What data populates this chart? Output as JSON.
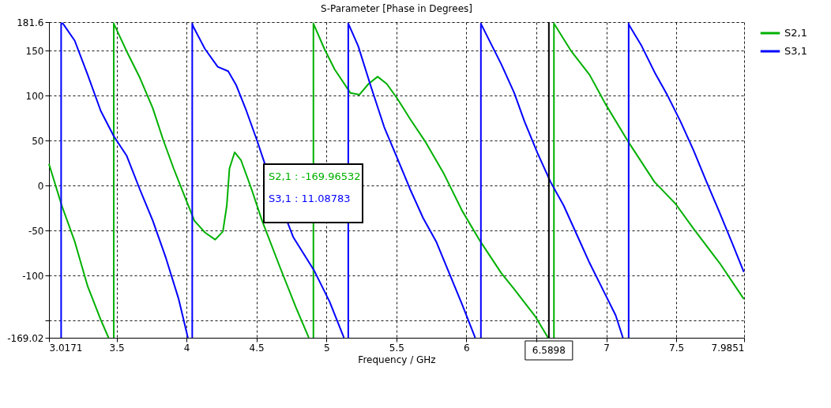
{
  "chart_data": {
    "type": "line",
    "title": "S-Parameter [Phase in Degrees]",
    "xlabel": "Frequency / GHz",
    "xlim": [
      3.0171,
      7.9851
    ],
    "xticks": [
      3.0171,
      3.5,
      4,
      4.5,
      5,
      5.5,
      6,
      {
        "value": 6.5,
        "label": null
      },
      7,
      7.5,
      7.9851
    ],
    "ylim": [
      -169.02,
      181.6
    ],
    "yticks": [
      -169.02,
      {
        "value": -150,
        "label": null
      },
      -100,
      -50,
      0,
      50,
      100,
      150,
      181.6
    ],
    "grid": true,
    "legend": "right",
    "line_style": "solid",
    "marker": "none",
    "ref_lines": [
      {
        "axis": "x",
        "value": 6.5898,
        "label": "6.5898",
        "color": "#000000"
      }
    ],
    "annotations": [
      "S2,1 : -169.96532",
      "S3,1 : 11.08783"
    ],
    "series": [
      {
        "name": "S2,1",
        "color": "#00b000",
        "x": [
          3.0171,
          3.108,
          3.201,
          3.294,
          3.387,
          3.443,
          3.46,
          3.48,
          3.48,
          3.573,
          3.666,
          3.759,
          3.833,
          3.908,
          3.982,
          4.056,
          4.131,
          4.205,
          4.26,
          4.288,
          4.307,
          4.344,
          4.39,
          4.465,
          4.54,
          4.669,
          4.781,
          4.874,
          4.89,
          4.907,
          4.907,
          4.985,
          5.059,
          5.171,
          5.236,
          5.301,
          5.366,
          5.431,
          5.505,
          5.598,
          5.71,
          5.84,
          5.97,
          6.1,
          6.249,
          6.342,
          6.491,
          6.584,
          6.6,
          6.626,
          6.626,
          6.751,
          6.881,
          6.993,
          7.16,
          7.345,
          7.494,
          7.624,
          7.81,
          7.983
        ],
        "values": [
          24,
          -22,
          -62,
          -112,
          -149,
          -169,
          null,
          -169,
          180,
          149,
          120,
          86,
          51,
          19,
          -10,
          -39,
          -52,
          -60,
          -51,
          -22,
          19,
          37,
          28,
          -4,
          -39,
          -91,
          -135,
          -169,
          null,
          -169,
          180,
          152,
          129,
          103,
          101,
          113,
          121,
          113,
          97,
          74,
          48,
          13,
          -28,
          -62,
          -97,
          -115,
          -145,
          -169,
          null,
          -169,
          180,
          149,
          123,
          91,
          48,
          4,
          -20,
          -48,
          -86,
          -126
        ]
      },
      {
        "name": "S3,1",
        "color": "#0000ff",
        "x": [
          3.104,
          3.104,
          3.117,
          3.201,
          3.294,
          3.387,
          3.48,
          3.573,
          3.666,
          3.759,
          3.852,
          3.944,
          4.01,
          4.025,
          4.041,
          4.041,
          4.047,
          4.131,
          4.223,
          4.298,
          4.354,
          4.428,
          4.502,
          4.558,
          4.762,
          4.911,
          5.023,
          5.125,
          5.14,
          5.156,
          5.156,
          5.162,
          5.227,
          5.32,
          5.413,
          5.505,
          5.598,
          5.691,
          5.784,
          5.877,
          5.97,
          6.063,
          6.08,
          6.104,
          6.104,
          6.11,
          6.249,
          6.342,
          6.416,
          6.509,
          6.602,
          6.695,
          6.788,
          6.881,
          6.974,
          7.067,
          7.119,
          7.14,
          7.16,
          7.16,
          7.164,
          7.253,
          7.345,
          7.438,
          7.531,
          7.624,
          7.717,
          7.81,
          7.903,
          7.983
        ],
        "values": [
          -169,
          180,
          180,
          161,
          123,
          83,
          55,
          33,
          -4,
          -39,
          -80,
          -126,
          -169,
          null,
          -169,
          180,
          177,
          152,
          132,
          127,
          112,
          83,
          51,
          25,
          -57,
          -94,
          -129,
          -169,
          null,
          -169,
          180,
          178,
          155,
          109,
          65,
          31,
          -4,
          -36,
          -62,
          -97,
          -132,
          -169,
          null,
          -169,
          180,
          178,
          135,
          103,
          71,
          36,
          4,
          -22,
          -54,
          -86,
          -115,
          -144,
          -169,
          null,
          -169,
          180,
          178,
          155,
          126,
          100,
          71,
          39,
          4,
          -30,
          -65,
          -96
        ]
      }
    ]
  }
}
